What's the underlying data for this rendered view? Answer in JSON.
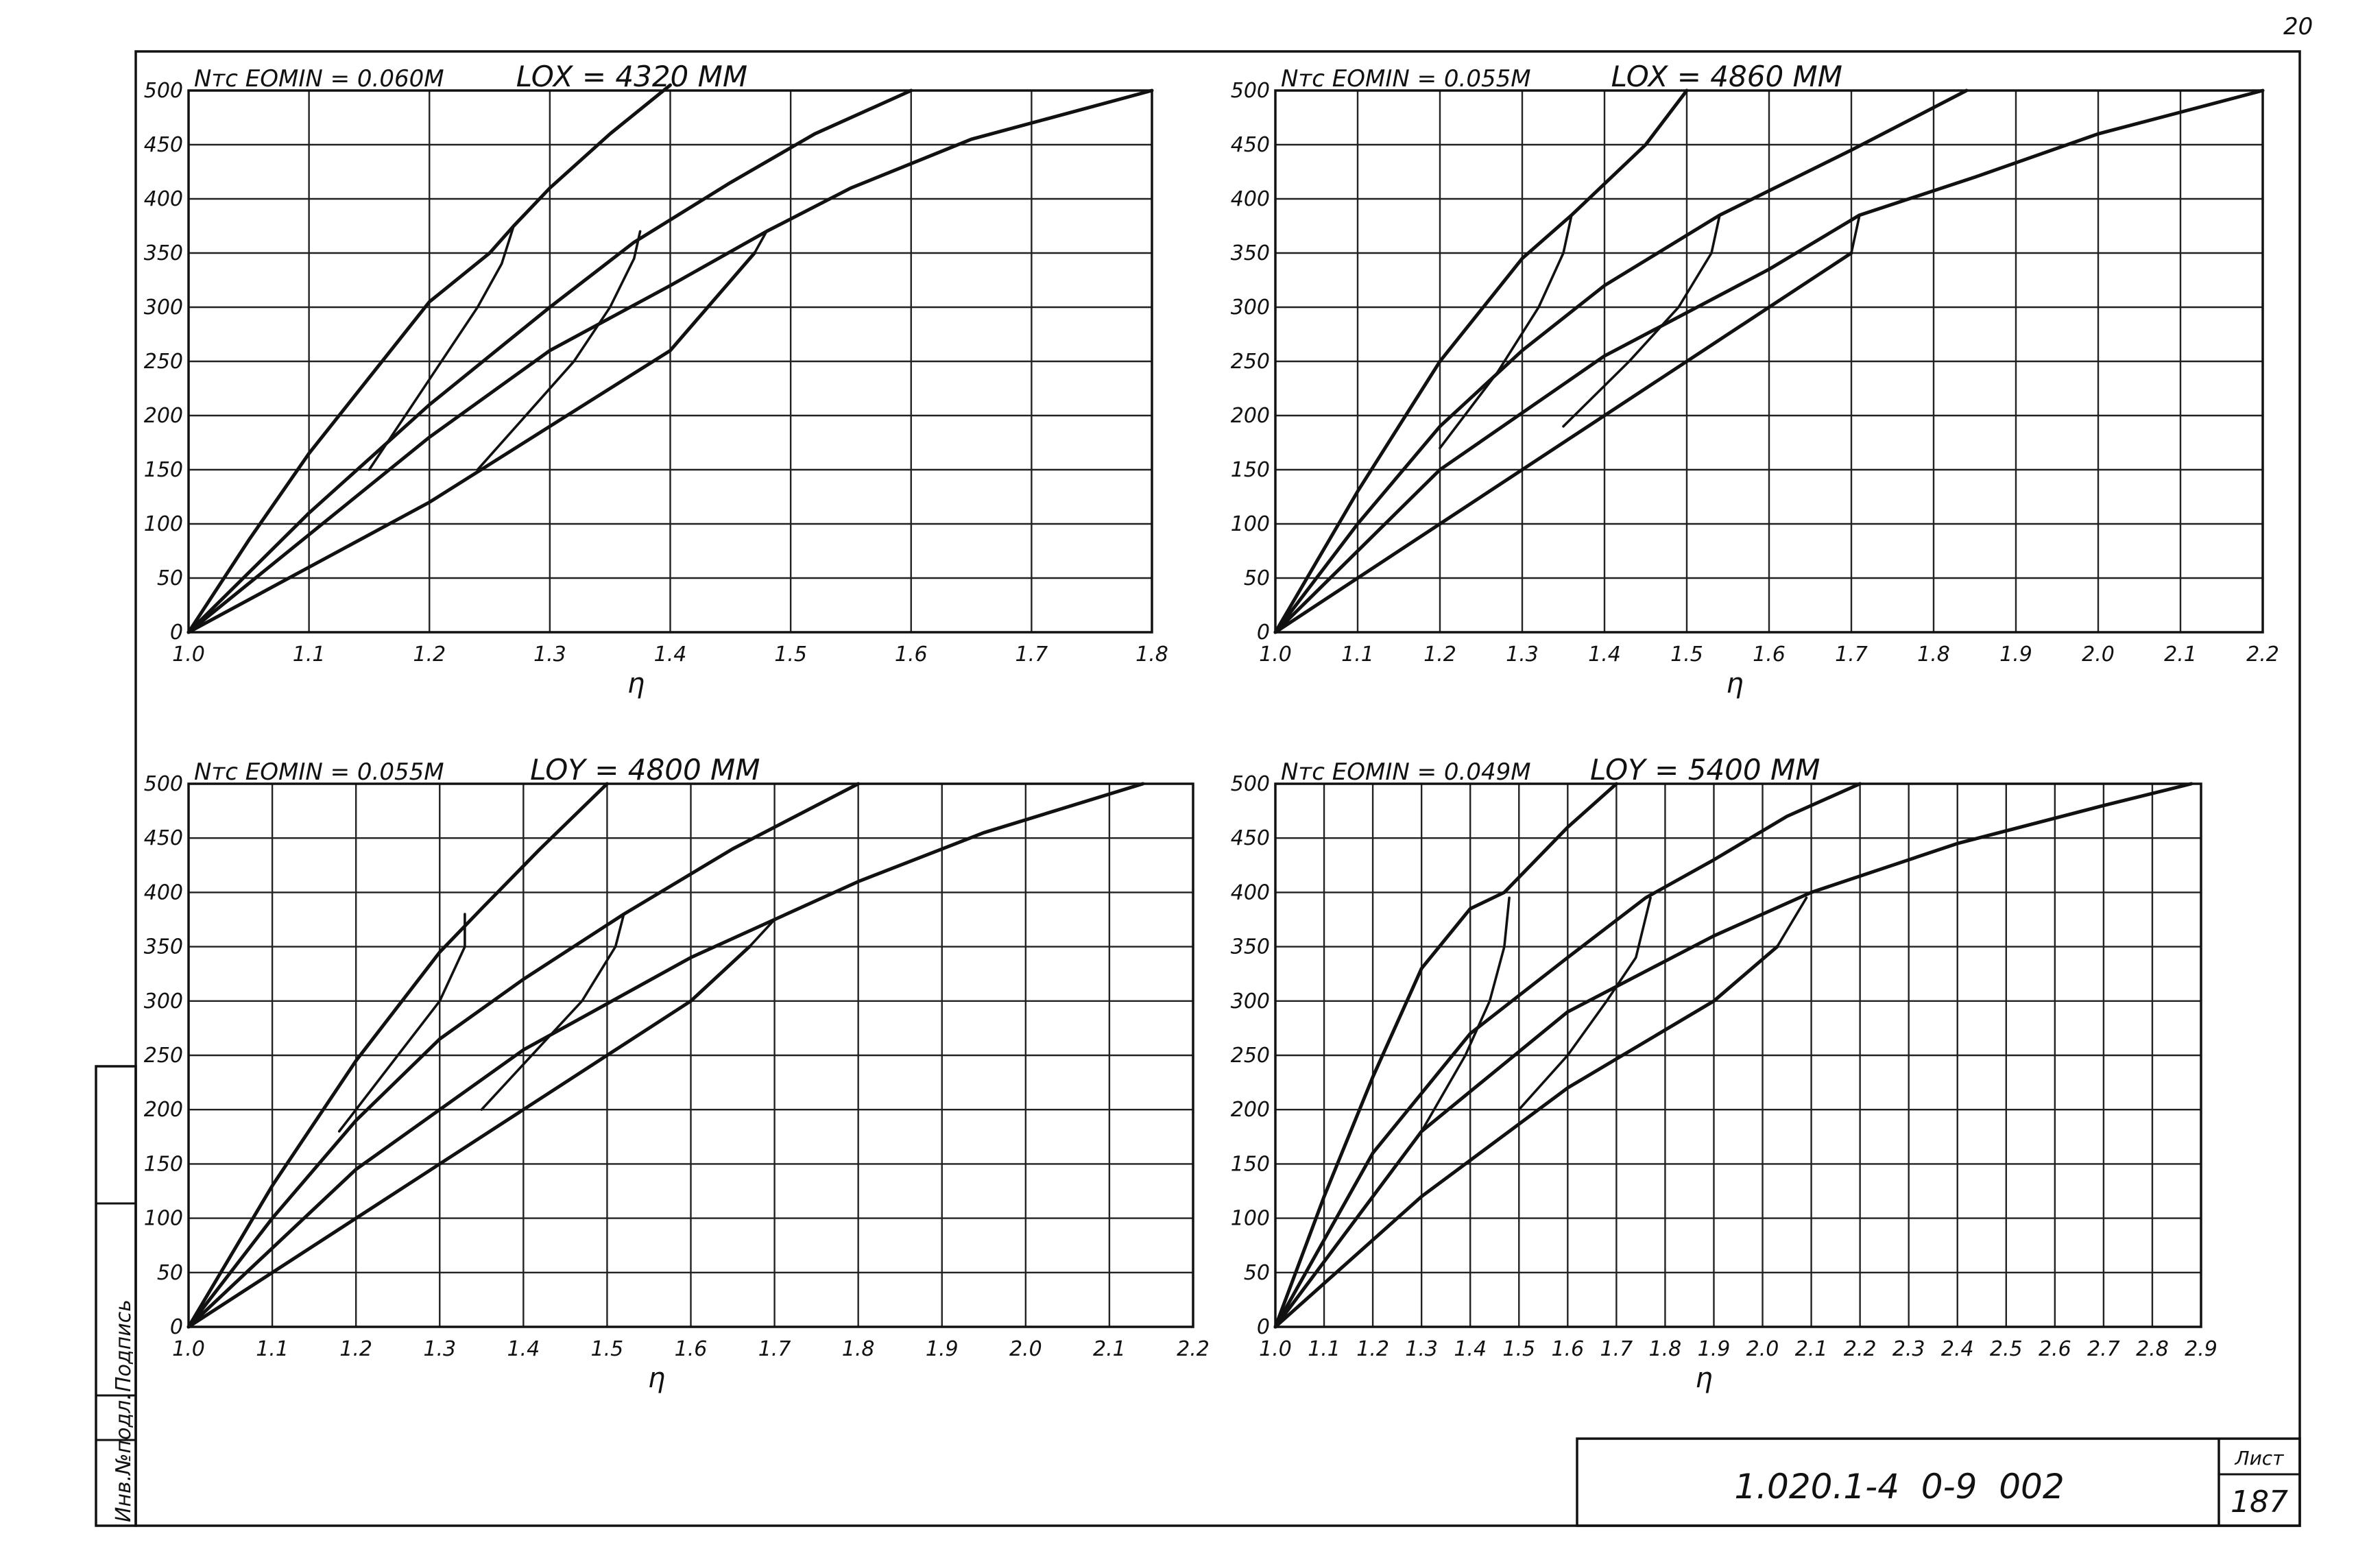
{
  "page_number": "20",
  "side_stamp": {
    "col1": "Инв.№подл.",
    "col2": "Подпись"
  },
  "title_block": {
    "code": "1.020.1-4  0-9  002",
    "sheet_label": "Лист",
    "sheet_number": "187"
  },
  "chart_data": [
    {
      "type": "line",
      "header_left": "Nтс  EOMIN = 0.060M",
      "header_right": "LOX = 4320 MM",
      "xlabel": "η",
      "ylabel": "",
      "xlim": [
        1.0,
        1.8
      ],
      "ylim": [
        0,
        500
      ],
      "x_ticks": [
        1.0,
        1.1,
        1.2,
        1.3,
        1.4,
        1.5,
        1.6,
        1.7,
        1.8
      ],
      "x_tick_labels": [
        "1.0",
        "1.1",
        "1.2",
        "1.3",
        "1.4",
        "1.5",
        "1.6",
        "1.7",
        "1.8"
      ],
      "y_ticks": [
        0,
        50,
        100,
        150,
        200,
        250,
        300,
        350,
        400,
        450,
        500
      ],
      "y_tick_labels": [
        "0",
        "50",
        "100",
        "150",
        "200",
        "250",
        "300",
        "350",
        "400",
        "450",
        "500"
      ],
      "series": [
        {
          "x": [
            1.0,
            1.05,
            1.1,
            1.15,
            1.2,
            1.25,
            1.27,
            1.3,
            1.35,
            1.4
          ],
          "y": [
            0,
            85,
            165,
            235,
            305,
            350,
            375,
            410,
            460,
            505
          ]
        },
        {
          "x": [
            1.0,
            1.1,
            1.2,
            1.3,
            1.37,
            1.45,
            1.52,
            1.6
          ],
          "y": [
            0,
            110,
            210,
            300,
            360,
            415,
            460,
            500
          ]
        },
        {
          "x": [
            1.0,
            1.1,
            1.2,
            1.3,
            1.4,
            1.48,
            1.55,
            1.65,
            1.8
          ],
          "y": [
            0,
            90,
            180,
            260,
            320,
            370,
            410,
            455,
            500
          ]
        },
        {
          "x": [
            1.0,
            1.1,
            1.2,
            1.3,
            1.4,
            1.47
          ],
          "y": [
            0,
            60,
            120,
            190,
            260,
            350
          ]
        },
        {
          "x": [
            1.27,
            1.26,
            1.24,
            1.21,
            1.18,
            1.15
          ],
          "y": [
            375,
            340,
            300,
            250,
            200,
            150
          ]
        },
        {
          "x": [
            1.375,
            1.37,
            1.35,
            1.32,
            1.28,
            1.24
          ],
          "y": [
            370,
            345,
            300,
            250,
            200,
            150
          ]
        },
        {
          "x": [
            1.48,
            1.47
          ],
          "y": [
            370,
            350
          ]
        }
      ]
    },
    {
      "type": "line",
      "header_left": "Nтс  EOMIN = 0.055M",
      "header_right": "LOX = 4860 MM",
      "xlabel": "η",
      "ylabel": "",
      "xlim": [
        1.0,
        2.2
      ],
      "ylim": [
        0,
        500
      ],
      "x_ticks": [
        1.0,
        1.1,
        1.2,
        1.3,
        1.4,
        1.5,
        1.6,
        1.7,
        1.8,
        1.9,
        2.0,
        2.1,
        2.2
      ],
      "x_tick_labels": [
        "1.0",
        "1.1",
        "1.2",
        "1.3",
        "1.4",
        "1.5",
        "1.6",
        "1.7",
        "1.8",
        "1.9",
        "2.0",
        "2.1",
        "2.2"
      ],
      "y_ticks": [
        0,
        50,
        100,
        150,
        200,
        250,
        300,
        350,
        400,
        450,
        500
      ],
      "y_tick_labels": [
        "0",
        "50",
        "100",
        "150",
        "200",
        "250",
        "300",
        "350",
        "400",
        "450",
        "500"
      ],
      "series": [
        {
          "x": [
            1.0,
            1.1,
            1.2,
            1.3,
            1.36,
            1.45,
            1.5
          ],
          "y": [
            0,
            130,
            250,
            345,
            385,
            450,
            500
          ]
        },
        {
          "x": [
            1.0,
            1.1,
            1.2,
            1.3,
            1.4,
            1.54,
            1.7,
            1.84
          ],
          "y": [
            0,
            100,
            190,
            260,
            320,
            385,
            445,
            500
          ]
        },
        {
          "x": [
            1.0,
            1.2,
            1.4,
            1.6,
            1.71,
            1.85,
            2.0,
            2.2
          ],
          "y": [
            0,
            150,
            255,
            335,
            385,
            420,
            460,
            500
          ]
        },
        {
          "x": [
            1.0,
            1.2,
            1.4,
            1.6,
            1.7
          ],
          "y": [
            0,
            100,
            200,
            300,
            350
          ]
        },
        {
          "x": [
            1.36,
            1.35,
            1.32,
            1.27,
            1.2
          ],
          "y": [
            385,
            350,
            300,
            240,
            170
          ]
        },
        {
          "x": [
            1.54,
            1.53,
            1.49,
            1.43,
            1.35
          ],
          "y": [
            385,
            350,
            300,
            250,
            190
          ]
        },
        {
          "x": [
            1.71,
            1.7
          ],
          "y": [
            385,
            350
          ]
        }
      ]
    },
    {
      "type": "line",
      "header_left": "Nтс  EOMIN = 0.055M",
      "header_right": "LOY = 4800 MM",
      "xlabel": "η",
      "ylabel": "",
      "xlim": [
        1.0,
        2.2
      ],
      "ylim": [
        0,
        500
      ],
      "x_ticks": [
        1.0,
        1.1,
        1.2,
        1.3,
        1.4,
        1.5,
        1.6,
        1.7,
        1.8,
        1.9,
        2.0,
        2.1,
        2.2
      ],
      "x_tick_labels": [
        "1.0",
        "1.1",
        "1.2",
        "1.3",
        "1.4",
        "1.5",
        "1.6",
        "1.7",
        "1.8",
        "1.9",
        "2.0",
        "2.1",
        "2.2"
      ],
      "y_ticks": [
        0,
        50,
        100,
        150,
        200,
        250,
        300,
        350,
        400,
        450,
        500
      ],
      "y_tick_labels": [
        "0",
        "50",
        "100",
        "150",
        "200",
        "250",
        "300",
        "350",
        "400",
        "450",
        "500"
      ],
      "series": [
        {
          "x": [
            1.0,
            1.1,
            1.2,
            1.3,
            1.35,
            1.42,
            1.5
          ],
          "y": [
            0,
            130,
            245,
            345,
            385,
            440,
            500
          ]
        },
        {
          "x": [
            1.0,
            1.1,
            1.2,
            1.3,
            1.4,
            1.52,
            1.65,
            1.8
          ],
          "y": [
            0,
            100,
            190,
            265,
            320,
            380,
            440,
            500
          ]
        },
        {
          "x": [
            1.0,
            1.2,
            1.4,
            1.6,
            1.7,
            1.8,
            1.95,
            2.14
          ],
          "y": [
            0,
            145,
            255,
            340,
            375,
            410,
            455,
            500
          ]
        },
        {
          "x": [
            1.0,
            1.2,
            1.4,
            1.6,
            1.67
          ],
          "y": [
            0,
            100,
            200,
            300,
            350
          ]
        },
        {
          "x": [
            1.33,
            1.33,
            1.3,
            1.25,
            1.18
          ],
          "y": [
            380,
            350,
            300,
            250,
            180
          ]
        },
        {
          "x": [
            1.52,
            1.51,
            1.47,
            1.41,
            1.35
          ],
          "y": [
            380,
            350,
            300,
            250,
            200
          ]
        },
        {
          "x": [
            1.7,
            1.67
          ],
          "y": [
            375,
            350
          ]
        }
      ]
    },
    {
      "type": "line",
      "header_left": "Nтс  EOMIN = 0.049M",
      "header_right": "LOY = 5400 MM",
      "xlabel": "η",
      "ylabel": "",
      "xlim": [
        1.0,
        2.9
      ],
      "ylim": [
        0,
        500
      ],
      "x_ticks": [
        1.0,
        1.1,
        1.2,
        1.3,
        1.4,
        1.5,
        1.6,
        1.7,
        1.8,
        1.9,
        2.0,
        2.1,
        2.2,
        2.3,
        2.4,
        2.5,
        2.6,
        2.7,
        2.8,
        2.9
      ],
      "x_tick_labels": [
        "1.0",
        "1.1",
        "1.2",
        "1.3",
        "1.4",
        "1.5",
        "1.6",
        "1.7",
        "1.8",
        "1.9",
        "2.0",
        "2.1",
        "2.2",
        "2.3",
        "2.4",
        "2.5",
        "2.6",
        "2.7",
        "2.8",
        "2.9"
      ],
      "y_ticks": [
        0,
        50,
        100,
        150,
        200,
        250,
        300,
        350,
        400,
        450,
        500
      ],
      "y_tick_labels": [
        "0",
        "50",
        "100",
        "150",
        "200",
        "250",
        "300",
        "350",
        "400",
        "450",
        "500"
      ],
      "series": [
        {
          "x": [
            1.0,
            1.1,
            1.2,
            1.3,
            1.4,
            1.47,
            1.6,
            1.7
          ],
          "y": [
            0,
            120,
            230,
            330,
            385,
            400,
            460,
            500
          ]
        },
        {
          "x": [
            1.0,
            1.2,
            1.4,
            1.6,
            1.76,
            1.9,
            2.05,
            2.2
          ],
          "y": [
            0,
            160,
            270,
            340,
            395,
            430,
            470,
            500
          ]
        },
        {
          "x": [
            1.0,
            1.3,
            1.6,
            1.9,
            2.1,
            2.4,
            2.7,
            2.88
          ],
          "y": [
            0,
            180,
            290,
            360,
            400,
            445,
            480,
            500
          ]
        },
        {
          "x": [
            1.0,
            1.3,
            1.6,
            1.9,
            2.03
          ],
          "y": [
            0,
            120,
            220,
            300,
            350
          ]
        },
        {
          "x": [
            1.48,
            1.47,
            1.44,
            1.39,
            1.3
          ],
          "y": [
            395,
            350,
            300,
            250,
            180
          ]
        },
        {
          "x": [
            1.77,
            1.74,
            1.68,
            1.6,
            1.5
          ],
          "y": [
            395,
            340,
            300,
            250,
            200
          ]
        },
        {
          "x": [
            2.09,
            2.03
          ],
          "y": [
            395,
            350
          ]
        }
      ]
    }
  ]
}
